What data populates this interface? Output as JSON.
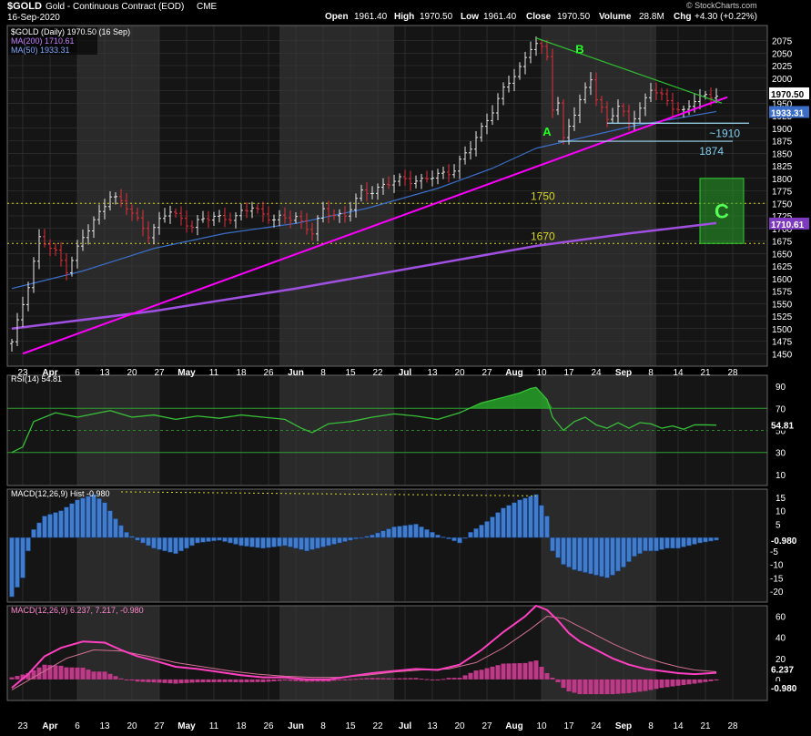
{
  "header": {
    "symbol": "$GOLD",
    "name": "Gold - Continuous Contract (EOD)",
    "exchange": "CME",
    "date": "16-Sep-2020",
    "open_label": "Open",
    "open": "1961.40",
    "high_label": "High",
    "high": "1970.50",
    "low_label": "Low",
    "low": "1961.40",
    "close_label": "Close",
    "close": "1970.50",
    "volume_label": "Volume",
    "volume": "28.8M",
    "chg_label": "Chg",
    "chg": "+4.30 (+0.22%)",
    "copyright": "© StockCharts.com"
  },
  "colors": {
    "background": "#000000",
    "panel_bg": "#151515",
    "shade": "#2a2a2a",
    "grid": "#3a3a3a",
    "up_bar": "#e8e8e8",
    "down_bar": "#e0303a",
    "ma200": "#a050e0",
    "ma50": "#3b6ec8",
    "trend_magenta": "#ff00ff",
    "trend_green": "#30c030",
    "support_cyan": "#9fd8f0",
    "level_yellow": "#d8d820",
    "rsi_line": "#38c038",
    "macd_hist": "#3f7dd0",
    "macd_line": "#ff40c0",
    "signal_line": "#d07090",
    "macd_hist2": "#c03888"
  },
  "chart_data": [
    {
      "type": "candlestick",
      "title": "$GOLD (Daily) 1970.50 (16 Sep)",
      "legend": [
        {
          "name": "MA(200)",
          "value": "1710.61"
        },
        {
          "name": "MA(50)",
          "value": "1933.31"
        }
      ],
      "ylim": [
        1425,
        2105
      ],
      "y_ticks": [
        1450,
        1475,
        1500,
        1525,
        1550,
        1575,
        1600,
        1625,
        1650,
        1675,
        1700,
        1725,
        1750,
        1775,
        1800,
        1825,
        1850,
        1875,
        1900,
        1925,
        1950,
        1975,
        2000,
        2025,
        2050,
        2075
      ],
      "x_ticks": [
        "23",
        "Apr",
        "6",
        "13",
        "20",
        "27",
        "May",
        "11",
        "18",
        "26",
        "Jun",
        "8",
        "15",
        "22",
        "Jul",
        "13",
        "20",
        "27",
        "Aug",
        "10",
        "17",
        "24",
        "Sep",
        "8",
        "14",
        "21",
        "28"
      ],
      "price_path": [
        [
          0,
          1470
        ],
        [
          3,
          1590
        ],
        [
          5,
          1680
        ],
        [
          8,
          1650
        ],
        [
          10,
          1620
        ],
        [
          13,
          1680
        ],
        [
          16,
          1730
        ],
        [
          18,
          1770
        ],
        [
          22,
          1730
        ],
        [
          25,
          1690
        ],
        [
          29,
          1735
        ],
        [
          33,
          1705
        ],
        [
          37,
          1725
        ],
        [
          41,
          1720
        ],
        [
          44,
          1745
        ],
        [
          48,
          1715
        ],
        [
          52,
          1725
        ],
        [
          55,
          1690
        ],
        [
          57,
          1735
        ],
        [
          61,
          1725
        ],
        [
          64,
          1770
        ],
        [
          68,
          1785
        ],
        [
          72,
          1800
        ],
        [
          75,
          1795
        ],
        [
          78,
          1805
        ],
        [
          81,
          1820
        ],
        [
          84,
          1860
        ],
        [
          87,
          1920
        ],
        [
          90,
          1975
        ],
        [
          93,
          2020
        ],
        [
          95,
          2065
        ],
        [
          96,
          2070
        ],
        [
          98,
          2040
        ],
        [
          99,
          1940
        ],
        [
          100,
          1950
        ],
        [
          101,
          1880
        ],
        [
          102,
          1910
        ],
        [
          104,
          1950
        ],
        [
          106,
          2000
        ],
        [
          107,
          1960
        ],
        [
          109,
          1920
        ],
        [
          111,
          1940
        ],
        [
          113,
          1910
        ],
        [
          115,
          1940
        ],
        [
          117,
          1980
        ],
        [
          119,
          1960
        ],
        [
          121,
          1945
        ],
        [
          123,
          1935
        ],
        [
          125,
          1955
        ],
        [
          127,
          1962
        ],
        [
          128,
          1966
        ],
        [
          129,
          1970.5
        ]
      ],
      "ma50_path": [
        [
          0,
          1580
        ],
        [
          13,
          1615
        ],
        [
          26,
          1660
        ],
        [
          39,
          1690
        ],
        [
          52,
          1710
        ],
        [
          65,
          1740
        ],
        [
          78,
          1780
        ],
        [
          88,
          1820
        ],
        [
          96,
          1860
        ],
        [
          106,
          1885
        ],
        [
          114,
          1905
        ],
        [
          122,
          1920
        ],
        [
          129,
          1933.31
        ]
      ],
      "ma200_path": [
        [
          0,
          1500
        ],
        [
          26,
          1535
        ],
        [
          52,
          1580
        ],
        [
          78,
          1630
        ],
        [
          96,
          1665
        ],
        [
          113,
          1690
        ],
        [
          129,
          1710.61
        ]
      ],
      "trendline_magenta": [
        [
          2,
          1450
        ],
        [
          131,
          1962
        ]
      ],
      "trendline_green": [
        [
          96,
          2080
        ],
        [
          130,
          1950
        ]
      ],
      "support_lines": [
        {
          "label": "~1910",
          "y": 1910,
          "from": 109,
          "to": 135
        },
        {
          "label": "1874",
          "y": 1874,
          "from": 100,
          "to": 132
        }
      ],
      "levels": [
        {
          "label": "1750",
          "y": 1750
        },
        {
          "label": "1670",
          "y": 1670
        }
      ],
      "wave_labels": [
        {
          "label": "A",
          "x": 98,
          "y": 1885
        },
        {
          "label": "B",
          "x": 104,
          "y": 2050
        }
      ],
      "target_box": {
        "label": "C",
        "x0": 126,
        "x1": 134,
        "y0": 1670,
        "y1": 1800
      },
      "price_label": "1970.50",
      "ma50_label": "1933.31",
      "ma200_label": "1710.61"
    },
    {
      "type": "line",
      "title": "RSI(14) 54.81",
      "ylim": [
        0,
        100
      ],
      "y_ticks": [
        10,
        30,
        50,
        70,
        90
      ],
      "reference_lines": [
        30,
        50,
        70
      ],
      "rsi_path": [
        [
          0,
          30
        ],
        [
          2,
          35
        ],
        [
          4,
          58
        ],
        [
          8,
          66
        ],
        [
          12,
          62
        ],
        [
          16,
          66
        ],
        [
          18,
          68
        ],
        [
          22,
          62
        ],
        [
          26,
          64
        ],
        [
          30,
          60
        ],
        [
          34,
          63
        ],
        [
          38,
          61
        ],
        [
          42,
          64
        ],
        [
          46,
          62
        ],
        [
          50,
          60
        ],
        [
          53,
          52
        ],
        [
          55,
          48
        ],
        [
          58,
          56
        ],
        [
          62,
          58
        ],
        [
          66,
          62
        ],
        [
          70,
          65
        ],
        [
          74,
          63
        ],
        [
          78,
          60
        ],
        [
          82,
          66
        ],
        [
          86,
          75
        ],
        [
          90,
          80
        ],
        [
          93,
          84
        ],
        [
          95,
          88
        ],
        [
          96,
          89
        ],
        [
          98,
          78
        ],
        [
          99,
          62
        ],
        [
          101,
          50
        ],
        [
          103,
          58
        ],
        [
          105,
          62
        ],
        [
          107,
          55
        ],
        [
          109,
          52
        ],
        [
          111,
          57
        ],
        [
          113,
          52
        ],
        [
          115,
          57
        ],
        [
          117,
          56
        ],
        [
          119,
          52
        ],
        [
          121,
          54
        ],
        [
          123,
          51
        ],
        [
          125,
          55
        ],
        [
          127,
          55
        ],
        [
          129,
          54.81
        ]
      ],
      "value_label": "54.81"
    },
    {
      "type": "bar",
      "title": "MACD(12,26,9) Hist -0.980",
      "ylim": [
        -24,
        18
      ],
      "y_ticks": [
        -20,
        -15,
        -10,
        -5,
        0,
        5,
        10,
        15
      ],
      "hist_path": [
        [
          0,
          -22
        ],
        [
          2,
          -15
        ],
        [
          3,
          -5
        ],
        [
          4,
          3
        ],
        [
          6,
          8
        ],
        [
          9,
          10
        ],
        [
          12,
          14
        ],
        [
          15,
          16
        ],
        [
          17,
          13
        ],
        [
          19,
          7
        ],
        [
          21,
          2
        ],
        [
          23,
          -1
        ],
        [
          26,
          -4
        ],
        [
          30,
          -6
        ],
        [
          34,
          -2
        ],
        [
          38,
          -1
        ],
        [
          42,
          -3
        ],
        [
          46,
          -4
        ],
        [
          50,
          -3
        ],
        [
          54,
          -5
        ],
        [
          58,
          -3
        ],
        [
          62,
          -1
        ],
        [
          66,
          1
        ],
        [
          70,
          4
        ],
        [
          74,
          5
        ],
        [
          78,
          1
        ],
        [
          82,
          -2
        ],
        [
          84,
          2
        ],
        [
          87,
          6
        ],
        [
          90,
          11
        ],
        [
          93,
          14
        ],
        [
          96,
          16
        ],
        [
          98,
          8
        ],
        [
          99,
          -5
        ],
        [
          101,
          -10
        ],
        [
          103,
          -12
        ],
        [
          105,
          -13
        ],
        [
          107,
          -14
        ],
        [
          109,
          -15
        ],
        [
          110,
          -14
        ],
        [
          112,
          -11
        ],
        [
          114,
          -7
        ],
        [
          116,
          -5
        ],
        [
          118,
          -5
        ],
        [
          120,
          -4
        ],
        [
          122,
          -4
        ],
        [
          124,
          -3
        ],
        [
          126,
          -2
        ],
        [
          129,
          -0.98
        ]
      ],
      "value_label": "-0.980"
    },
    {
      "type": "line",
      "title": "MACD(12,26,9) 6.237, 7.217, -0.980",
      "ylim": [
        -20,
        70
      ],
      "y_ticks": [
        0,
        20,
        40,
        60
      ],
      "macd_path": [
        [
          0,
          -8
        ],
        [
          3,
          5
        ],
        [
          6,
          22
        ],
        [
          9,
          30
        ],
        [
          13,
          36
        ],
        [
          17,
          35
        ],
        [
          20,
          28
        ],
        [
          23,
          22
        ],
        [
          26,
          18
        ],
        [
          30,
          12
        ],
        [
          34,
          10
        ],
        [
          38,
          7
        ],
        [
          42,
          4
        ],
        [
          46,
          2
        ],
        [
          50,
          2
        ],
        [
          54,
          0
        ],
        [
          58,
          0
        ],
        [
          62,
          3
        ],
        [
          66,
          6
        ],
        [
          70,
          8
        ],
        [
          74,
          10
        ],
        [
          78,
          9
        ],
        [
          82,
          14
        ],
        [
          86,
          28
        ],
        [
          90,
          45
        ],
        [
          94,
          60
        ],
        [
          96,
          70
        ],
        [
          98,
          66
        ],
        [
          100,
          56
        ],
        [
          102,
          44
        ],
        [
          104,
          36
        ],
        [
          107,
          28
        ],
        [
          110,
          20
        ],
        [
          113,
          14
        ],
        [
          116,
          10
        ],
        [
          119,
          8
        ],
        [
          122,
          6
        ],
        [
          125,
          5
        ],
        [
          129,
          6.237
        ]
      ],
      "signal_path": [
        [
          0,
          -10
        ],
        [
          5,
          5
        ],
        [
          10,
          20
        ],
        [
          15,
          28
        ],
        [
          20,
          27
        ],
        [
          25,
          22
        ],
        [
          30,
          16
        ],
        [
          35,
          12
        ],
        [
          40,
          8
        ],
        [
          45,
          5
        ],
        [
          50,
          3
        ],
        [
          55,
          2
        ],
        [
          60,
          2
        ],
        [
          65,
          4
        ],
        [
          70,
          7
        ],
        [
          75,
          9
        ],
        [
          80,
          10
        ],
        [
          85,
          16
        ],
        [
          90,
          30
        ],
        [
          95,
          48
        ],
        [
          98,
          60
        ],
        [
          101,
          58
        ],
        [
          104,
          50
        ],
        [
          107,
          42
        ],
        [
          110,
          34
        ],
        [
          113,
          27
        ],
        [
          116,
          21
        ],
        [
          119,
          16
        ],
        [
          122,
          12
        ],
        [
          125,
          9
        ],
        [
          129,
          7.217
        ]
      ],
      "macd_label": "6.237",
      "hist_label": "-0.980"
    }
  ]
}
